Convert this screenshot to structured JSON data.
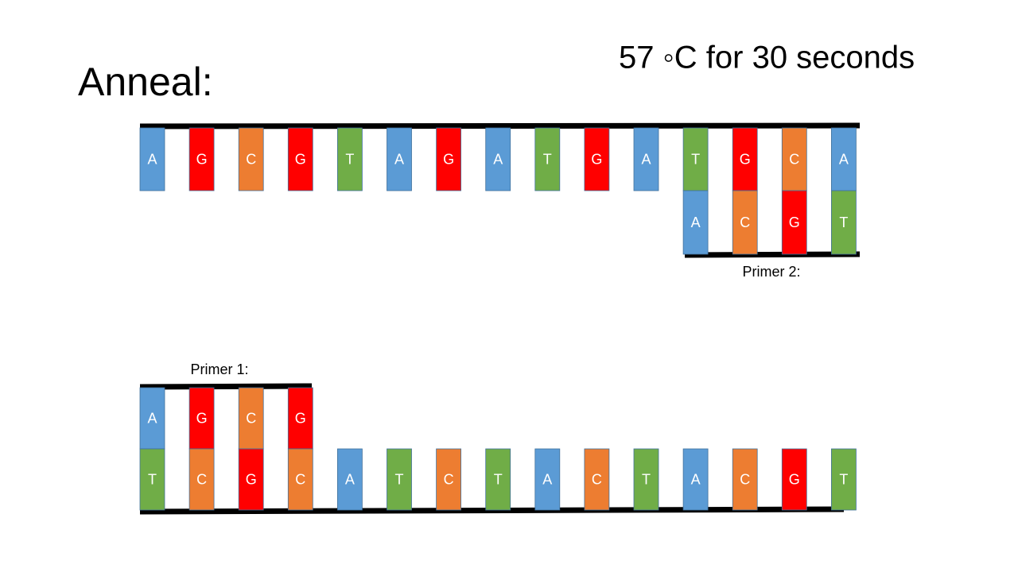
{
  "title": "Anneal:",
  "condition": "57 ◦C for 30 seconds",
  "base_colors": {
    "A": "#5b9bd5",
    "G": "#ff0000",
    "C": "#ed7d31",
    "T": "#70ad47"
  },
  "top_strand": {
    "bases": [
      "A",
      "G",
      "C",
      "G",
      "T",
      "A",
      "G",
      "A",
      "T",
      "G",
      "A",
      "T",
      "G",
      "C",
      "A"
    ]
  },
  "primer_2": {
    "label": "Primer 2:",
    "bases": [
      "A",
      "C",
      "G",
      "T"
    ]
  },
  "primer_1": {
    "label": "Primer 1:",
    "bases": [
      "A",
      "G",
      "C",
      "G"
    ]
  },
  "bottom_strand": {
    "bases": [
      "T",
      "C",
      "G",
      "C",
      "A",
      "T",
      "C",
      "T",
      "A",
      "C",
      "T",
      "A",
      "C",
      "G",
      "T"
    ]
  }
}
